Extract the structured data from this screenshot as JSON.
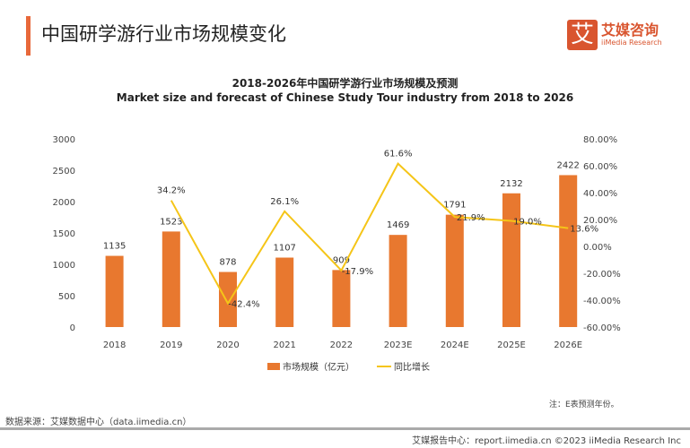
{
  "header": {
    "title": "中国研学游行业市场规模变化",
    "logo_mark": "艾",
    "logo_cn": "艾媒咨询",
    "logo_en": "iiMedia Research"
  },
  "chart_data": {
    "type": "bar+line",
    "title": "2018-2026年中国研学游行业市场规模及预测",
    "subtitle": "Market size and forecast of Chinese Study Tour industry from 2018 to 2026",
    "categories": [
      "2018",
      "2019",
      "2020",
      "2021",
      "2022",
      "2023E",
      "2024E",
      "2025E",
      "2026E"
    ],
    "series": [
      {
        "name": "市场规模（亿元）",
        "type": "bar",
        "axis": "left",
        "color": "#e8782f",
        "values": [
          1135,
          1523,
          878,
          1107,
          909,
          1469,
          1791,
          2132,
          2422
        ],
        "labels": [
          "1135",
          "1523",
          "878",
          "1107",
          "909",
          "1469",
          "1791",
          "2132",
          "2422"
        ]
      },
      {
        "name": "同比增长",
        "type": "line",
        "axis": "right",
        "color": "#f5c518",
        "values": [
          null,
          34.2,
          -42.4,
          26.1,
          -17.9,
          61.6,
          21.9,
          19.0,
          13.6
        ],
        "labels": [
          "",
          "34.2%",
          "-42.4%",
          "26.1%",
          "-17.9%",
          "61.6%",
          "21.9%",
          "19.0%",
          "13.6%"
        ]
      }
    ],
    "yleft": {
      "range": [
        0,
        3000
      ],
      "ticks": [
        "0",
        "500",
        "1000",
        "1500",
        "2000",
        "2500",
        "3000"
      ]
    },
    "yright": {
      "range": [
        -60,
        80
      ],
      "ticks": [
        "-60.00%",
        "-40.00%",
        "-20.00%",
        "0.00%",
        "20.00%",
        "40.00%",
        "60.00%",
        "80.00%"
      ]
    },
    "legend": "bottom",
    "grid": false
  },
  "footer": {
    "note": "注：E表预测年份。",
    "source": "数据来源：艾媒数据中心（data.iimedia.cn）",
    "credit": "艾媒报告中心：report.iimedia.cn  ©2023  iiMedia Research Inc"
  }
}
